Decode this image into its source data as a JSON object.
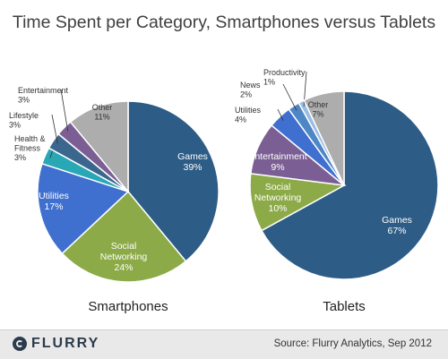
{
  "chart_data": {
    "type": "pie",
    "title": "Time Spent per Category, Smartphones versus Tablets",
    "charts": [
      {
        "name": "Smartphones",
        "slices": [
          {
            "label": "Games",
            "value": 39,
            "display": "39%",
            "color": "#2d5c86"
          },
          {
            "label": "Social Networking",
            "value": 24,
            "display": "24%",
            "color": "#8caa48"
          },
          {
            "label": "Utilities",
            "value": 17,
            "display": "17%",
            "color": "#3f6fcf"
          },
          {
            "label": "Health & Fitness",
            "value": 3,
            "display": "3%",
            "color": "#2aa7b4"
          },
          {
            "label": "Lifestyle",
            "value": 3,
            "display": "3%",
            "color": "#3b678f"
          },
          {
            "label": "Entertainment",
            "value": 3,
            "display": "3%",
            "color": "#7b5f94"
          },
          {
            "label": "Other",
            "value": 11,
            "display": "11%",
            "color": "#adadad"
          }
        ]
      },
      {
        "name": "Tablets",
        "slices": [
          {
            "label": "Games",
            "value": 67,
            "display": "67%",
            "color": "#2d5c86"
          },
          {
            "label": "Social Networking",
            "value": 10,
            "display": "10%",
            "color": "#8caa48"
          },
          {
            "label": "Entertainment",
            "value": 9,
            "display": "9%",
            "color": "#7b5f94"
          },
          {
            "label": "Utilities",
            "value": 4,
            "display": "4%",
            "color": "#3f6fcf"
          },
          {
            "label": "News",
            "value": 2,
            "display": "2%",
            "color": "#4f86c6"
          },
          {
            "label": "Productivity",
            "value": 1,
            "display": "1%",
            "color": "#9bbde1"
          },
          {
            "label": "Other",
            "value": 7,
            "display": "7%",
            "color": "#adadad"
          }
        ]
      }
    ]
  },
  "footer": {
    "logo_text": "FLURRY",
    "source": "Source: Flurry Analytics, Sep 2012"
  }
}
